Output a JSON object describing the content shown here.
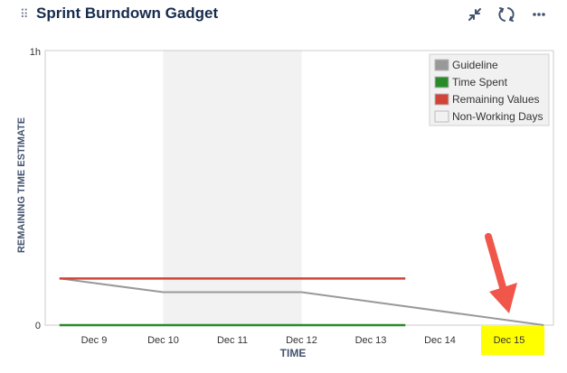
{
  "gadget": {
    "title": "Sprint Burndown Gadget",
    "icons": [
      "drag-handle-icon",
      "minimize-icon",
      "refresh-icon",
      "more-icon"
    ]
  },
  "chart_data": {
    "type": "line",
    "title": "",
    "xlabel": "TIME",
    "ylabel": "REMAINING TIME ESTIMATE",
    "x_categories": [
      "Dec 9",
      "Dec 10",
      "Dec 11",
      "Dec 12",
      "Dec 13",
      "Dec 14",
      "Dec 15"
    ],
    "highlighted_category": "Dec 15",
    "y_ticks": [
      "0",
      "1h"
    ],
    "y_range_hours": [
      0,
      1
    ],
    "non_working_days": {
      "from": "Dec 10",
      "to": "Dec 12"
    },
    "legend_position": "top-right",
    "legend": [
      {
        "label": "Guideline",
        "color": "#999999"
      },
      {
        "label": "Time Spent",
        "color": "#2a8a2a"
      },
      {
        "label": "Remaining Values",
        "color": "#d04437"
      },
      {
        "label": "Non-Working Days",
        "color": "#f0f0f0"
      }
    ],
    "series": [
      {
        "name": "Guideline",
        "color": "#999999",
        "points": [
          [
            "Dec 8.5",
            0.17
          ],
          [
            "Dec 10",
            0.12
          ],
          [
            "Dec 12",
            0.12
          ],
          [
            "Dec 15.5",
            0
          ]
        ]
      },
      {
        "name": "Time Spent",
        "color": "#2a8a2a",
        "points": [
          [
            "Dec 8.5",
            0
          ],
          [
            "Dec 13.5",
            0
          ]
        ]
      },
      {
        "name": "Remaining Values",
        "color": "#d04437",
        "points": [
          [
            "Dec 8.5",
            0.17
          ],
          [
            "Dec 13.5",
            0.17
          ]
        ]
      }
    ],
    "highlight_color": "#ffff00",
    "annotation_arrow_color": "#f0564a"
  }
}
